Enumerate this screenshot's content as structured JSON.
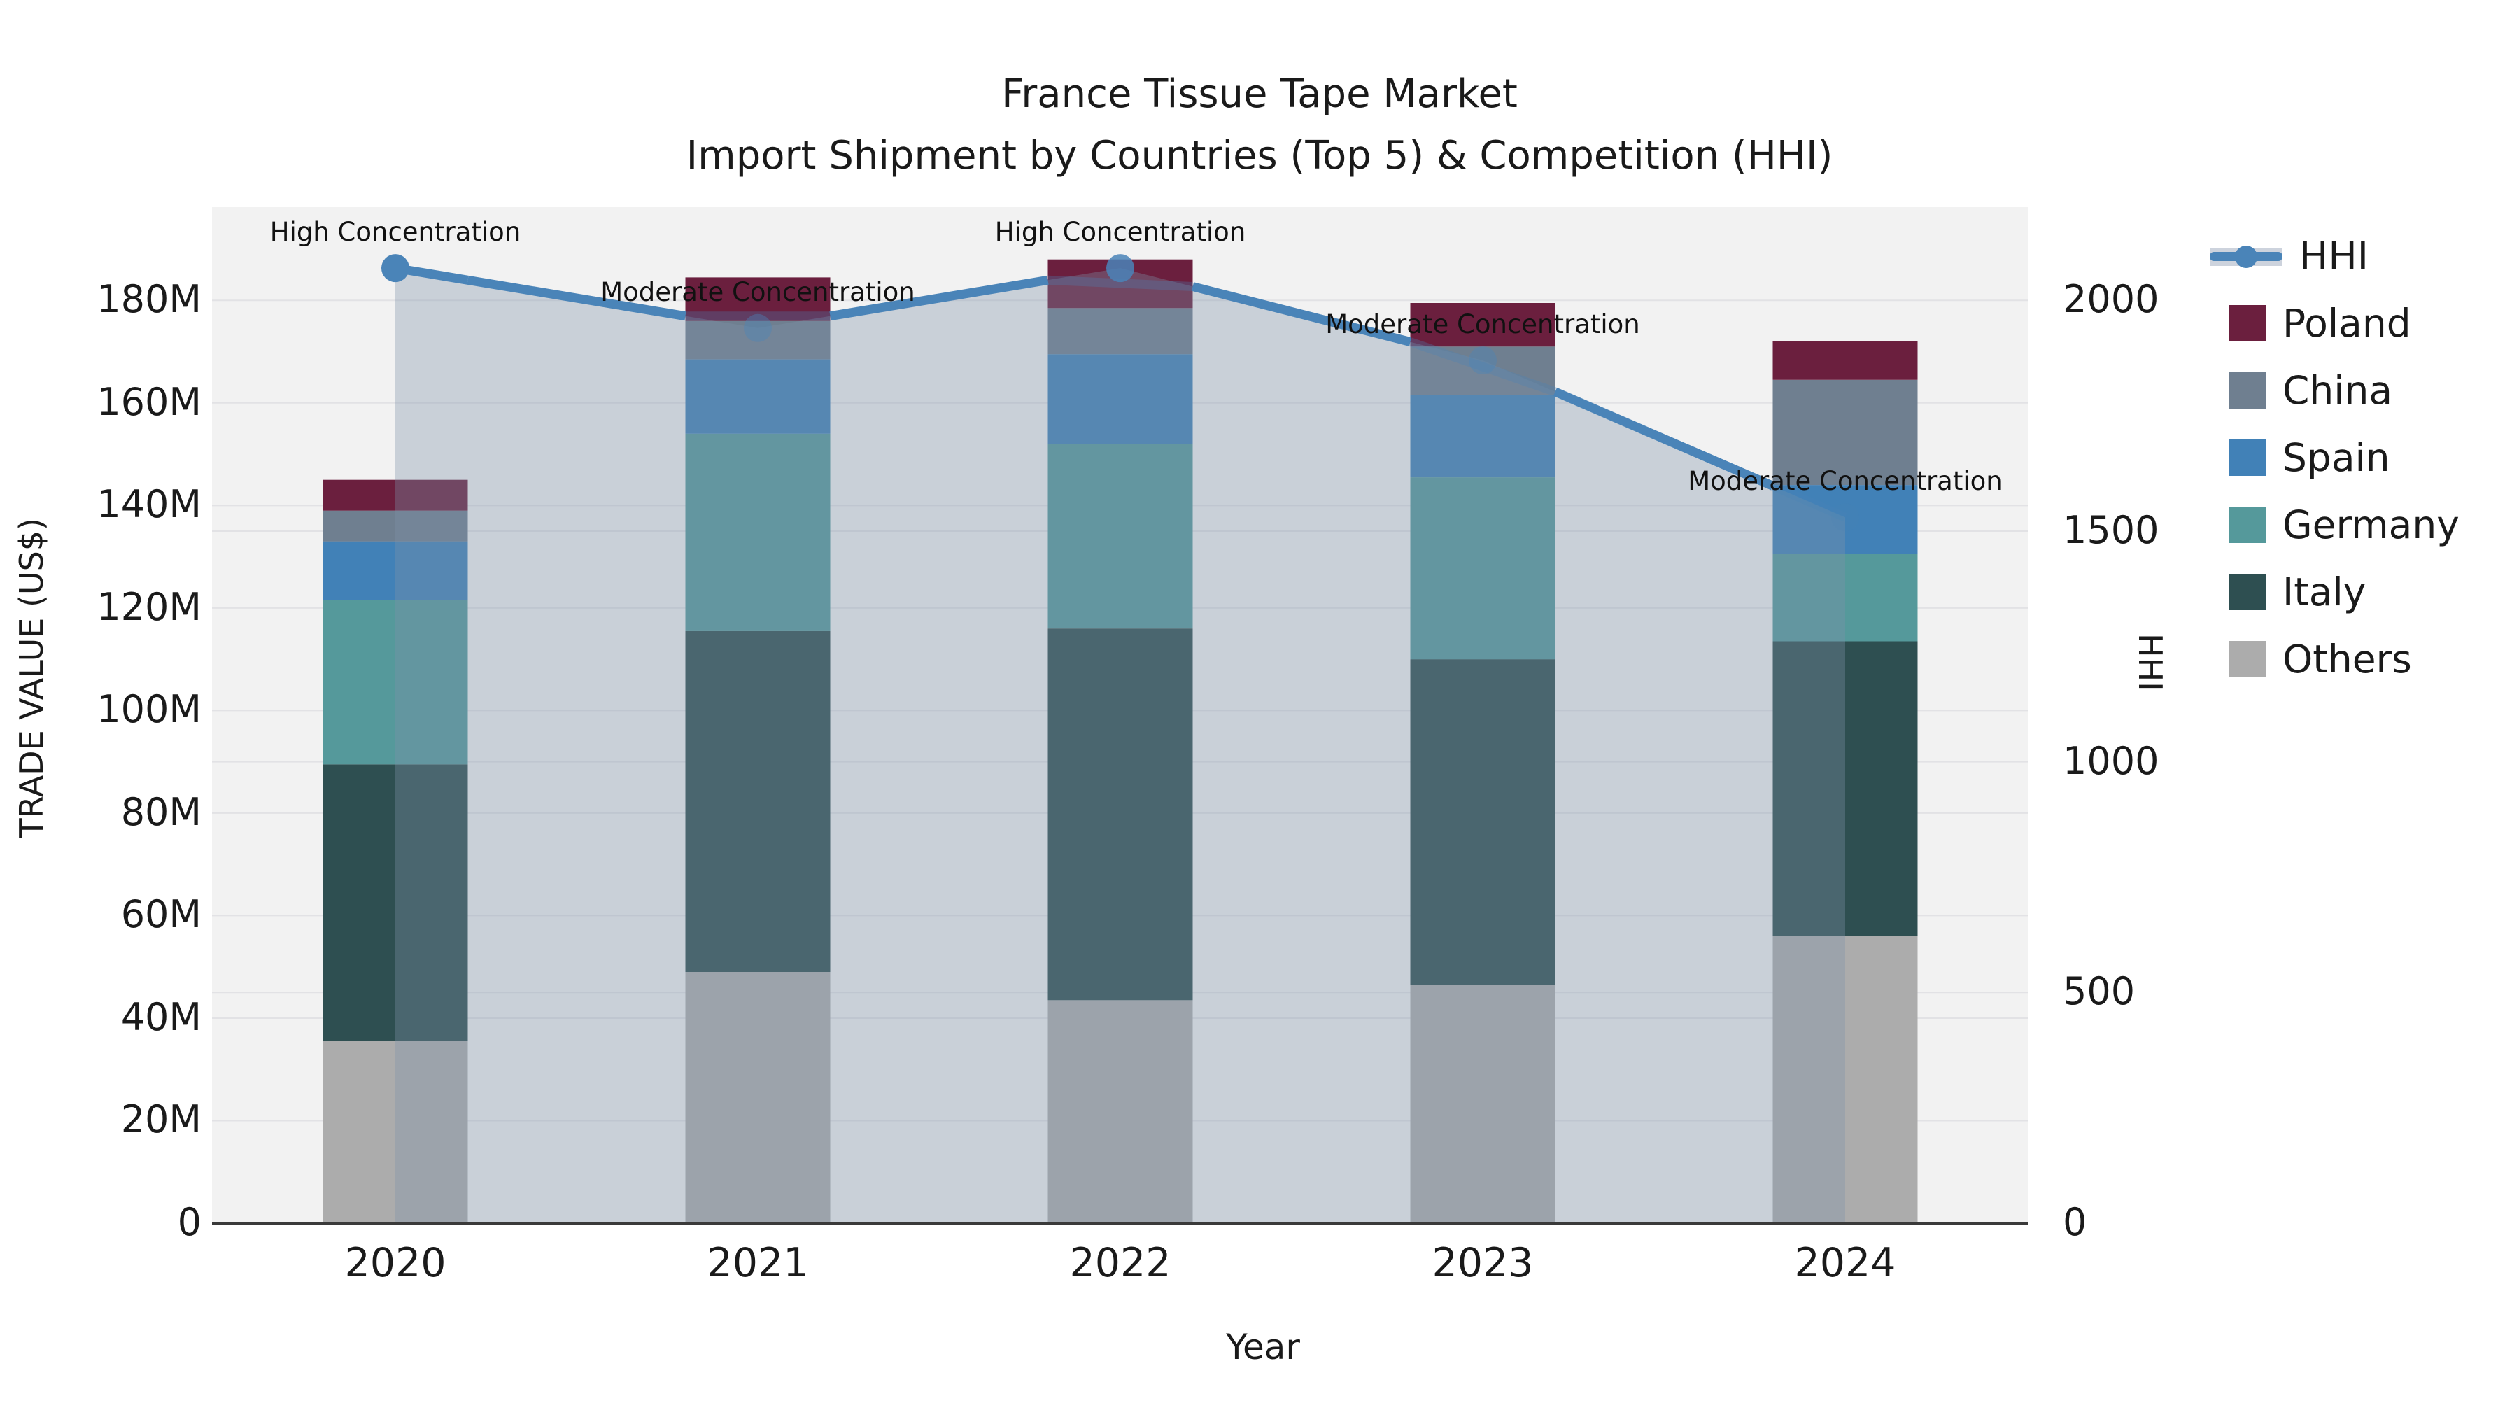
{
  "title": {
    "line1": "France Tissue Tape Market",
    "line2": "Import Shipment by Countries (Top 5) & Competition (HHI)"
  },
  "axes": {
    "left": {
      "title": "TRADE VALUE (US$)",
      "ticks": [
        "0",
        "20M",
        "40M",
        "60M",
        "80M",
        "100M",
        "120M",
        "140M",
        "160M",
        "180M"
      ],
      "tick_values": [
        0,
        20,
        40,
        60,
        80,
        100,
        120,
        140,
        160,
        180
      ]
    },
    "right": {
      "title": "HHI",
      "ticks": [
        "0",
        "500",
        "1000",
        "1500",
        "2000"
      ],
      "tick_values": [
        0,
        500,
        1000,
        1500,
        2000
      ]
    },
    "x": {
      "title": "Year",
      "ticks": [
        "2020",
        "2021",
        "2022",
        "2023",
        "2024"
      ]
    }
  },
  "legend": {
    "items": [
      {
        "label": "HHI",
        "type": "line",
        "color": "#4a84b8"
      },
      {
        "label": "Poland",
        "type": "swatch",
        "color": "#6b1f3e"
      },
      {
        "label": "China",
        "type": "swatch",
        "color": "#6f7f90"
      },
      {
        "label": "Spain",
        "type": "swatch",
        "color": "#4181b7"
      },
      {
        "label": "Germany",
        "type": "swatch",
        "color": "#55999b"
      },
      {
        "label": "Italy",
        "type": "swatch",
        "color": "#2e4f51"
      },
      {
        "label": "Others",
        "type": "swatch",
        "color": "#acacac"
      }
    ]
  },
  "chart_data": {
    "type": "bar",
    "subtype": "stacked bars (left axis, trade value US$) + HHI line with shaded area (right axis)",
    "categories": [
      "2020",
      "2021",
      "2022",
      "2023",
      "2024"
    ],
    "value_unit": "US$ millions",
    "stack_order_bottom_to_top": [
      "Others",
      "Italy",
      "Germany",
      "Spain",
      "China",
      "Poland"
    ],
    "series": [
      {
        "name": "Others",
        "values": [
          35.5,
          49.0,
          43.5,
          46.5,
          56.0
        ]
      },
      {
        "name": "Italy",
        "values": [
          54.0,
          66.5,
          72.5,
          63.5,
          57.5
        ]
      },
      {
        "name": "Germany",
        "values": [
          32.0,
          38.5,
          36.0,
          35.5,
          17.0
        ]
      },
      {
        "name": "Spain",
        "values": [
          11.5,
          14.5,
          17.5,
          16.0,
          13.5
        ]
      },
      {
        "name": "China",
        "values": [
          6.0,
          7.5,
          9.0,
          9.5,
          20.5
        ]
      },
      {
        "name": "Poland",
        "values": [
          6.0,
          8.5,
          9.5,
          8.5,
          7.5
        ]
      }
    ],
    "line_series": {
      "name": "HHI",
      "axis": "right",
      "values": [
        2070,
        1940,
        2070,
        1870,
        1530
      ],
      "marker": "circle",
      "area_fill": true
    },
    "annotations": [
      {
        "category": "2020",
        "text": "High Concentration"
      },
      {
        "category": "2021",
        "text": "Moderate Concentration"
      },
      {
        "category": "2022",
        "text": "High Concentration"
      },
      {
        "category": "2023",
        "text": "Moderate Concentration"
      },
      {
        "category": "2024",
        "text": "Moderate Concentration"
      }
    ],
    "title": "France Tissue Tape Market — Import Shipment by Countries (Top 5) & Competition (HHI)",
    "xlabel": "Year",
    "ylabel_left": "TRADE VALUE (US$)",
    "ylabel_right": "HHI",
    "ylim_left": [
      0,
      198
    ],
    "ylim_right": [
      0,
      2200
    ],
    "grid": true,
    "legend_position": "right"
  },
  "colors": {
    "plot_bg": "#f2f2f2",
    "figure_bg": "#ffffff",
    "grid": "#e2e2e5",
    "baseline": "#3a3a3a",
    "hhi_line": "#4a84b8",
    "hhi_area_fill": "rgba(125,145,170,0.35)",
    "poland": "#6b1f3e",
    "china": "#6f7f90",
    "spain": "#4181b7",
    "germany": "#55999b",
    "italy": "#2e4f51",
    "others": "#acacac",
    "text": "#1a1a1a"
  }
}
